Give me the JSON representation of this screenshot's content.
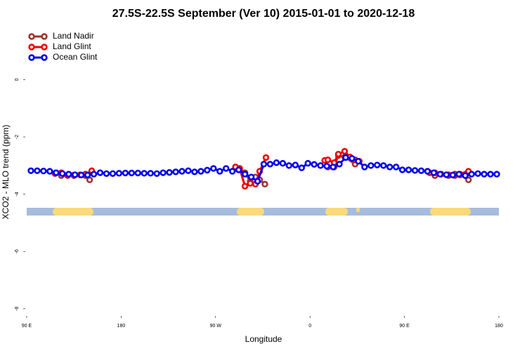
{
  "chart_data": {
    "type": "line",
    "title": "27.5S-22.5S September (Ver 10)   2015-01-01 to 2020-12-18",
    "x_label": "Longitude",
    "y_label": "XCO2 - MLO trend (ppm)",
    "xlim": [
      -270,
      180
    ],
    "ylim": [
      -8.25,
      1.85
    ],
    "xticks": [
      {
        "value": -270,
        "label": "90 E"
      },
      {
        "value": -180,
        "label": "180"
      },
      {
        "value": -90,
        "label": "90 W"
      },
      0,
      {
        "value": 90,
        "label": "90 E"
      },
      180
    ],
    "yticks": [
      -8,
      -6,
      -4,
      -2,
      0
    ],
    "legend": "top-left",
    "series": [
      {
        "name": "Land Nadir",
        "color": "#a0322d",
        "x": [
          -243,
          -237,
          -231,
          -225,
          -219,
          -214,
          -210,
          null,
          -71,
          -67,
          -62,
          -57,
          -52,
          -48,
          -43,
          null,
          17,
          23,
          27,
          33,
          43,
          null,
          119,
          125,
          132,
          138,
          143,
          148,
          151
        ],
        "values": [
          -3.28,
          -3.35,
          -3.35,
          -3.35,
          -3.33,
          -3.35,
          -3.5,
          null,
          -3.05,
          -3.1,
          -3.25,
          -3.55,
          -3.4,
          -3.5,
          -3.65,
          null,
          -3.05,
          -3.05,
          -2.65,
          -2.7,
          -2.95,
          null,
          -3.35,
          -3.3,
          -3.35,
          -3.35,
          -3.33,
          -3.3,
          -3.5
        ]
      },
      {
        "name": "Land Glint",
        "color": "#ee0000",
        "x": [
          -243,
          -237,
          -231,
          -225,
          -219,
          -214,
          -208,
          null,
          -71,
          -67,
          -62,
          -57,
          -52,
          -48,
          -42,
          null,
          14,
          17,
          23,
          27,
          33,
          38,
          43,
          47,
          null,
          114,
          119,
          125,
          132,
          138,
          143,
          148,
          151
        ],
        "values": [
          -3.27,
          -3.25,
          -3.33,
          -3.33,
          -3.32,
          -3.3,
          -3.18,
          null,
          -3.05,
          -3.1,
          -3.72,
          -3.62,
          -3.65,
          -3.2,
          -2.72,
          null,
          -2.82,
          -2.8,
          -2.9,
          -2.6,
          -2.5,
          -2.7,
          -2.8,
          -2.85,
          null,
          -3.25,
          -3.25,
          -3.3,
          -3.32,
          -3.3,
          -3.3,
          -3.35,
          -3.2
        ]
      },
      {
        "name": "Ocean Glint",
        "color": "#0000ee",
        "x": [
          -266,
          -260,
          -254,
          -248,
          -242,
          -236,
          -230,
          -224,
          -218,
          -212,
          -206,
          -200,
          -194,
          -188,
          -182,
          -176,
          -170,
          -164,
          -158,
          -152,
          -146,
          -140,
          -134,
          -128,
          -122,
          -116,
          -110,
          -104,
          -98,
          -92,
          -86,
          -80,
          -74,
          -68,
          -62,
          -56,
          -50,
          -44,
          -38,
          -32,
          -26,
          -20,
          -14,
          -8,
          -2,
          4,
          10,
          16,
          22,
          28,
          34,
          40,
          46,
          52,
          58,
          64,
          70,
          76,
          82,
          88,
          94,
          100,
          106,
          112,
          118,
          124,
          130,
          136,
          142,
          148,
          154,
          160,
          166,
          172,
          178
        ],
        "values": [
          -3.18,
          -3.18,
          -3.19,
          -3.2,
          -3.25,
          -3.28,
          -3.3,
          -3.32,
          -3.33,
          -3.33,
          -3.3,
          -3.25,
          -3.28,
          -3.28,
          -3.27,
          -3.26,
          -3.26,
          -3.26,
          -3.27,
          -3.27,
          -3.28,
          -3.25,
          -3.24,
          -3.22,
          -3.2,
          -3.18,
          -3.22,
          -3.2,
          -3.16,
          -3.1,
          -3.2,
          -3.1,
          -3.2,
          -3.15,
          -3.3,
          -3.4,
          -3.55,
          -2.95,
          -2.95,
          -2.9,
          -2.92,
          -3.0,
          -2.98,
          -3.08,
          -2.92,
          -2.96,
          -3.0,
          -3.02,
          -3.05,
          -2.95,
          -2.72,
          -2.75,
          -2.85,
          -3.05,
          -3.0,
          -2.98,
          -3.0,
          -3.05,
          -3.05,
          -3.15,
          -3.15,
          -3.17,
          -3.18,
          -3.2,
          -3.25,
          -3.3,
          -3.32,
          -3.33,
          -3.3,
          -3.35,
          -3.3,
          -3.28,
          -3.3,
          -3.3,
          -3.3
        ]
      }
    ]
  }
}
